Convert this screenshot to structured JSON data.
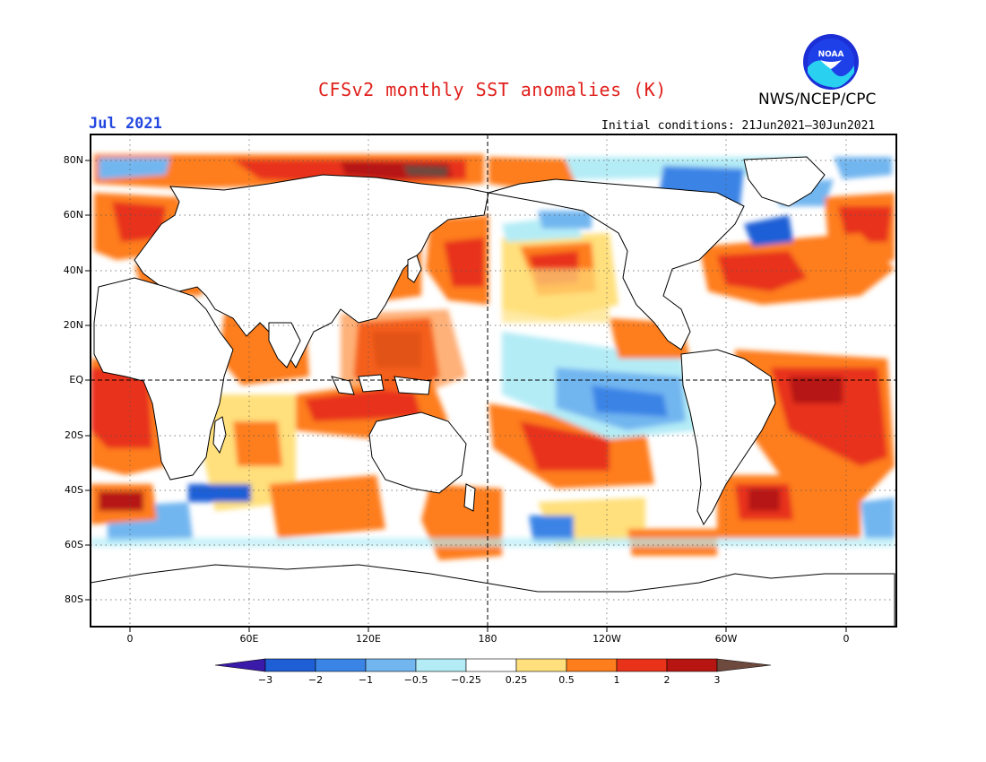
{
  "title": "CFSv2 monthly SST anomalies (K)",
  "valid_month": "Jul 2021",
  "agency": "NWS/NCEP/CPC",
  "logo": {
    "icon": "noaa-logo",
    "text": "NOAA"
  },
  "initial_conditions": "Initial conditions: 21Jun2021–30Jun2021",
  "map": {
    "lat_labels": [
      "80N",
      "60N",
      "40N",
      "20N",
      "EQ",
      "20S",
      "40S",
      "60S",
      "80S"
    ],
    "lon_labels": [
      "0",
      "60E",
      "120E",
      "180",
      "120W",
      "60W",
      "0"
    ]
  },
  "colorbar": {
    "labels": [
      "−3",
      "−2",
      "−1",
      "−0.5",
      "−0.25",
      "0.25",
      "0.5",
      "1",
      "2",
      "3"
    ],
    "colors": [
      "#3a1aa8",
      "#1f5fd6",
      "#3a84e6",
      "#72b6f0",
      "#b4ecf6",
      "#ffffff",
      "#ffe07c",
      "#fe7d1c",
      "#e8321a",
      "#b61512",
      "#6e4a3e"
    ]
  },
  "colors": {
    "land": "#ffffff",
    "ocean_neutral": "#ffffff",
    "frame": "#000000",
    "title": "#e0201c",
    "month": "#2246e0"
  }
}
